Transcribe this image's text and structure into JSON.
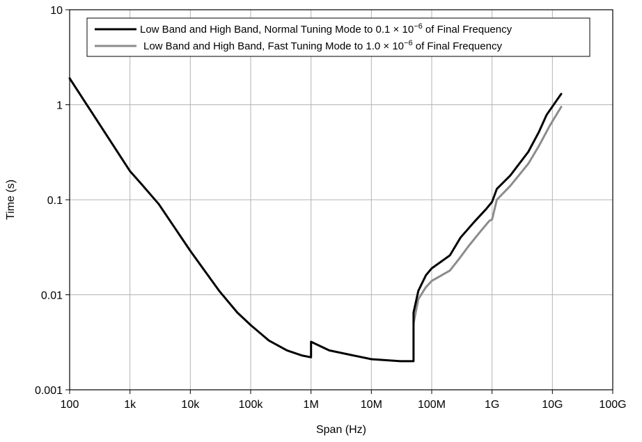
{
  "chart_data": {
    "type": "line",
    "xlabel": "Span (Hz)",
    "ylabel": "Time (s)",
    "x_scale": "log",
    "y_scale": "log",
    "xlim": [
      100,
      100000000000
    ],
    "ylim": [
      0.001,
      10
    ],
    "grid": true,
    "legend_position": "top-right",
    "x_ticks": [
      {
        "value": 100,
        "label": "100"
      },
      {
        "value": 1000,
        "label": "1k"
      },
      {
        "value": 10000,
        "label": "10k"
      },
      {
        "value": 100000,
        "label": "100k"
      },
      {
        "value": 1000000,
        "label": "1M"
      },
      {
        "value": 10000000,
        "label": "10M"
      },
      {
        "value": 100000000,
        "label": "100M"
      },
      {
        "value": 1000000000,
        "label": "1G"
      },
      {
        "value": 10000000000,
        "label": "10G"
      },
      {
        "value": 100000000000,
        "label": "100G"
      }
    ],
    "y_ticks": [
      {
        "value": 0.001,
        "label": "0.001"
      },
      {
        "value": 0.01,
        "label": "0.01"
      },
      {
        "value": 0.1,
        "label": "0.1"
      },
      {
        "value": 1,
        "label": "1"
      },
      {
        "value": 10,
        "label": "10"
      }
    ],
    "series": [
      {
        "name_main": "Low Band and High Band, Normal Tuning Mode to 0.1 × 10",
        "name_sup": "−6",
        "name_tail": " of Final Frequency",
        "color": "#000000",
        "points": [
          [
            100,
            1.9
          ],
          [
            1000,
            0.2
          ],
          [
            1500,
            0.15
          ],
          [
            3000,
            0.09
          ],
          [
            10000,
            0.029
          ],
          [
            30000,
            0.011
          ],
          [
            60000,
            0.0065
          ],
          [
            100000,
            0.0048
          ],
          [
            200000,
            0.0033
          ],
          [
            400000,
            0.0026
          ],
          [
            700000,
            0.0023
          ],
          [
            1000000,
            0.0022
          ],
          [
            1000000,
            0.0032
          ],
          [
            2000000,
            0.0026
          ],
          [
            5000000,
            0.0023
          ],
          [
            10000000,
            0.0021
          ],
          [
            30000000,
            0.002
          ],
          [
            50000000,
            0.002
          ],
          [
            50000000,
            0.0065
          ],
          [
            60000000,
            0.011
          ],
          [
            80000000,
            0.016
          ],
          [
            100000000,
            0.019
          ],
          [
            200000000,
            0.026
          ],
          [
            300000000,
            0.04
          ],
          [
            500000000,
            0.058
          ],
          [
            800000000,
            0.08
          ],
          [
            1000000000,
            0.095
          ],
          [
            1200000000,
            0.13
          ],
          [
            2000000000,
            0.18
          ],
          [
            4000000000,
            0.32
          ],
          [
            6000000000,
            0.52
          ],
          [
            8000000000,
            0.78
          ],
          [
            14000000000,
            1.3
          ]
        ]
      },
      {
        "name_main": "Low Band and High Band, Fast Tuning Mode to 1.0 × 10",
        "name_sup": "−6",
        "name_tail": " of Final Frequency",
        "color": "#8c8c8c",
        "points": [
          [
            50000000,
            0.005
          ],
          [
            60000000,
            0.009
          ],
          [
            80000000,
            0.012
          ],
          [
            100000000,
            0.014
          ],
          [
            200000000,
            0.018
          ],
          [
            300000000,
            0.025
          ],
          [
            400000000,
            0.032
          ],
          [
            600000000,
            0.044
          ],
          [
            900000000,
            0.06
          ],
          [
            1000000000,
            0.062
          ],
          [
            1200000000,
            0.1
          ],
          [
            2000000000,
            0.14
          ],
          [
            4000000000,
            0.24
          ],
          [
            6000000000,
            0.37
          ],
          [
            9000000000,
            0.6
          ],
          [
            14000000000,
            0.95
          ]
        ]
      }
    ]
  }
}
